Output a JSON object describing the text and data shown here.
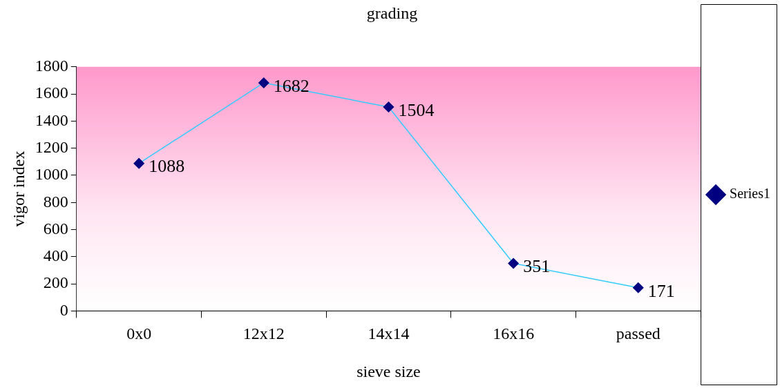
{
  "chart_data": {
    "type": "line",
    "title": "grading",
    "xlabel": "sieve size",
    "ylabel": "vigor index",
    "categories": [
      "0x0",
      "12x12",
      "14x14",
      "16x16",
      "passed"
    ],
    "series": [
      {
        "name": "Series1",
        "color": "#33ccff",
        "colors": [
          "#000080",
          "#000080",
          "#000080",
          "#000080",
          "#000080"
        ],
        "values": [
          1088,
          1682,
          1504,
          351,
          171
        ]
      }
    ],
    "ylim": [
      0,
      1800
    ],
    "yticks": [
      0,
      200,
      400,
      600,
      800,
      1000,
      1200,
      1400,
      1600,
      1800
    ],
    "grid": false,
    "legend": "right",
    "marker": "diamond",
    "line_style": "solid",
    "data_labels": true
  }
}
